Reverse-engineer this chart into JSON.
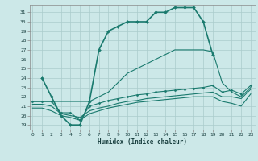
{
  "line1": {
    "x": [
      1,
      2,
      3,
      4,
      5,
      6,
      7,
      8,
      9,
      10,
      11,
      12,
      13,
      14,
      15,
      16,
      17,
      18,
      19
    ],
    "y": [
      24,
      22,
      20,
      19,
      19,
      21.5,
      27,
      29,
      29.5,
      30,
      30,
      30,
      31,
      31,
      31.5,
      31.5,
      31.5,
      30,
      26.5
    ],
    "color": "#1a7a6e",
    "marker": "D",
    "markersize": 2.0,
    "linewidth": 1.2
  },
  "line2": {
    "x": [
      0,
      1,
      2,
      3,
      4,
      5,
      6,
      7,
      8,
      9,
      10,
      11,
      12,
      13,
      14,
      15,
      16,
      17,
      18,
      19,
      20,
      21,
      22,
      23
    ],
    "y": [
      21.5,
      21.5,
      21.5,
      20.3,
      20.3,
      19.5,
      21.0,
      21.3,
      21.6,
      21.8,
      22.0,
      22.2,
      22.3,
      22.5,
      22.6,
      22.7,
      22.8,
      22.9,
      23.0,
      23.2,
      22.5,
      22.7,
      22.3,
      23.2
    ],
    "color": "#1a7a6e",
    "marker": "D",
    "markersize": 1.5,
    "linewidth": 0.8
  },
  "line3": {
    "x": [
      0,
      1,
      2,
      3,
      4,
      5,
      6,
      7,
      8,
      9,
      10,
      11,
      12,
      13,
      14,
      15,
      16,
      17,
      18,
      19,
      20,
      21,
      22,
      23
    ],
    "y": [
      21.2,
      21.2,
      21.0,
      20.2,
      20.0,
      19.8,
      20.5,
      20.8,
      21.0,
      21.3,
      21.5,
      21.6,
      21.8,
      21.9,
      22.0,
      22.1,
      22.2,
      22.3,
      22.4,
      22.5,
      22.0,
      22.0,
      21.8,
      22.8
    ],
    "color": "#1a7a6e",
    "marker": null,
    "linewidth": 0.8
  },
  "line4": {
    "x": [
      0,
      1,
      2,
      3,
      4,
      5,
      6,
      7,
      8,
      9,
      10,
      11,
      12,
      13,
      14,
      15,
      16,
      17,
      18,
      19,
      20,
      21,
      22,
      23
    ],
    "y": [
      20.8,
      20.8,
      20.5,
      20.0,
      19.8,
      19.5,
      20.2,
      20.5,
      20.8,
      21.0,
      21.2,
      21.4,
      21.5,
      21.6,
      21.7,
      21.8,
      21.9,
      22.0,
      22.0,
      22.0,
      21.5,
      21.3,
      21.0,
      22.3
    ],
    "color": "#1a7a6e",
    "marker": null,
    "linewidth": 0.8
  },
  "line5": {
    "x": [
      0,
      1,
      6,
      7,
      8,
      9,
      10,
      11,
      12,
      13,
      14,
      15,
      16,
      17,
      18,
      19,
      20,
      21,
      22,
      23
    ],
    "y": [
      21.5,
      21.5,
      21.5,
      22.0,
      22.5,
      23.5,
      24.5,
      25.0,
      25.5,
      26.0,
      26.5,
      27.0,
      27.0,
      27.0,
      27.0,
      26.8,
      23.5,
      22.5,
      22.0,
      23.0
    ],
    "color": "#1a7a6e",
    "marker": null,
    "linewidth": 0.8
  },
  "bg_color": "#cce8e8",
  "grid_color": "#aacccc",
  "xlabel": "Humidex (Indice chaleur)",
  "yticks": [
    19,
    20,
    21,
    22,
    23,
    24,
    25,
    26,
    27,
    28,
    29,
    30,
    31
  ],
  "xticks": [
    0,
    1,
    2,
    3,
    4,
    5,
    6,
    7,
    8,
    9,
    10,
    11,
    12,
    13,
    14,
    15,
    16,
    17,
    18,
    19,
    20,
    21,
    22,
    23
  ],
  "xlim": [
    -0.3,
    23.5
  ],
  "ylim": [
    18.5,
    31.8
  ]
}
